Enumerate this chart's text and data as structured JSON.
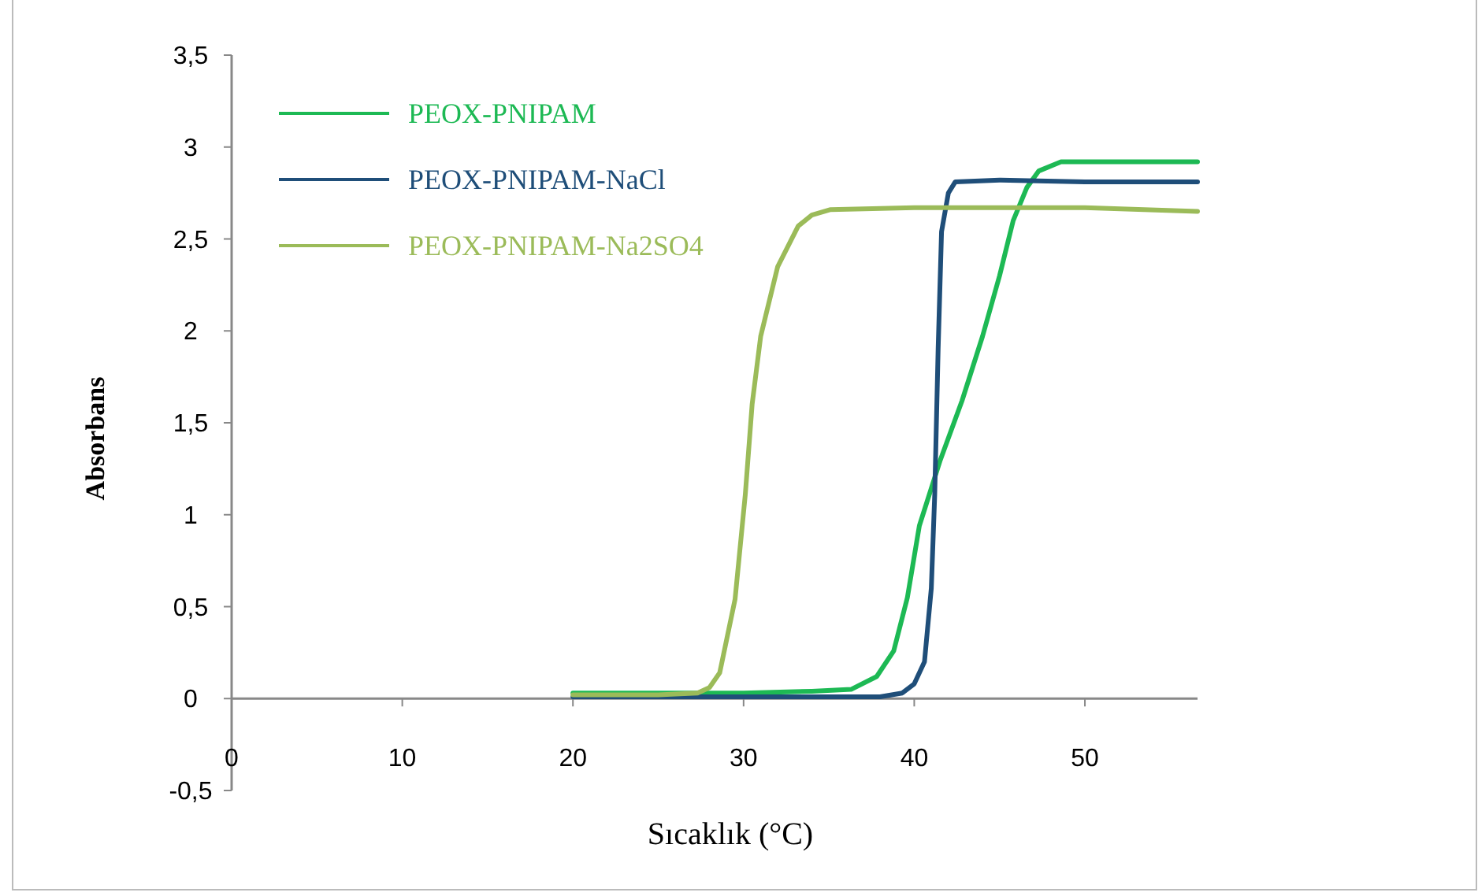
{
  "chart_data": {
    "type": "line",
    "xlabel": "Sıcaklık (°C)",
    "ylabel": "Absorbans",
    "xlim": [
      0,
      56.6
    ],
    "ylim": [
      -0.5,
      3.5
    ],
    "xticks": [
      0,
      10,
      20,
      30,
      40,
      50
    ],
    "yticks": [
      {
        "value": -0.5,
        "label": "-0,5"
      },
      0,
      {
        "value": 0.5,
        "label": "0,5"
      },
      1,
      {
        "value": 1.5,
        "label": "1,5"
      },
      2,
      {
        "value": 2.5,
        "label": "2,5"
      },
      3,
      {
        "value": 3.5,
        "label": "3,5"
      }
    ],
    "grid": false,
    "legend": "top left",
    "marker": "none",
    "line_style": "solid",
    "series": [
      {
        "name": "PEOX-PNIPAM",
        "color": "#1db954",
        "x": [
          20,
          25,
          30,
          34,
          36.3,
          37.8,
          38.8,
          39.6,
          40.3,
          41.5,
          42.8,
          44,
          45,
          45.8,
          46.6,
          47.3,
          48.6,
          52,
          56.6
        ],
        "values": [
          0.03,
          0.03,
          0.03,
          0.04,
          0.05,
          0.12,
          0.26,
          0.55,
          0.94,
          1.29,
          1.62,
          1.97,
          2.3,
          2.6,
          2.78,
          2.87,
          2.92,
          2.92,
          2.92
        ]
      },
      {
        "name": "PEOX-PNIPAM-NaCl",
        "color": "#1f4e79",
        "x": [
          20,
          25,
          30,
          35,
          38,
          39.3,
          40,
          40.6,
          41,
          41.2,
          41.4,
          41.6,
          42,
          42.4,
          45,
          50,
          56.6
        ],
        "values": [
          0.01,
          0.01,
          0.01,
          0.01,
          0.01,
          0.03,
          0.08,
          0.2,
          0.6,
          1.11,
          1.9,
          2.54,
          2.75,
          2.81,
          2.82,
          2.81,
          2.81
        ]
      },
      {
        "name": "PEOX-PNIPAM-Na2SO4",
        "color": "#9bbb59",
        "x": [
          20,
          25,
          27.3,
          28,
          28.6,
          29.5,
          30.1,
          30.5,
          31,
          32,
          33.2,
          34,
          35.1,
          40,
          45,
          50,
          56.6
        ],
        "values": [
          0.02,
          0.02,
          0.03,
          0.06,
          0.14,
          0.54,
          1.11,
          1.6,
          1.97,
          2.35,
          2.57,
          2.63,
          2.66,
          2.67,
          2.67,
          2.67,
          2.65
        ]
      }
    ]
  }
}
